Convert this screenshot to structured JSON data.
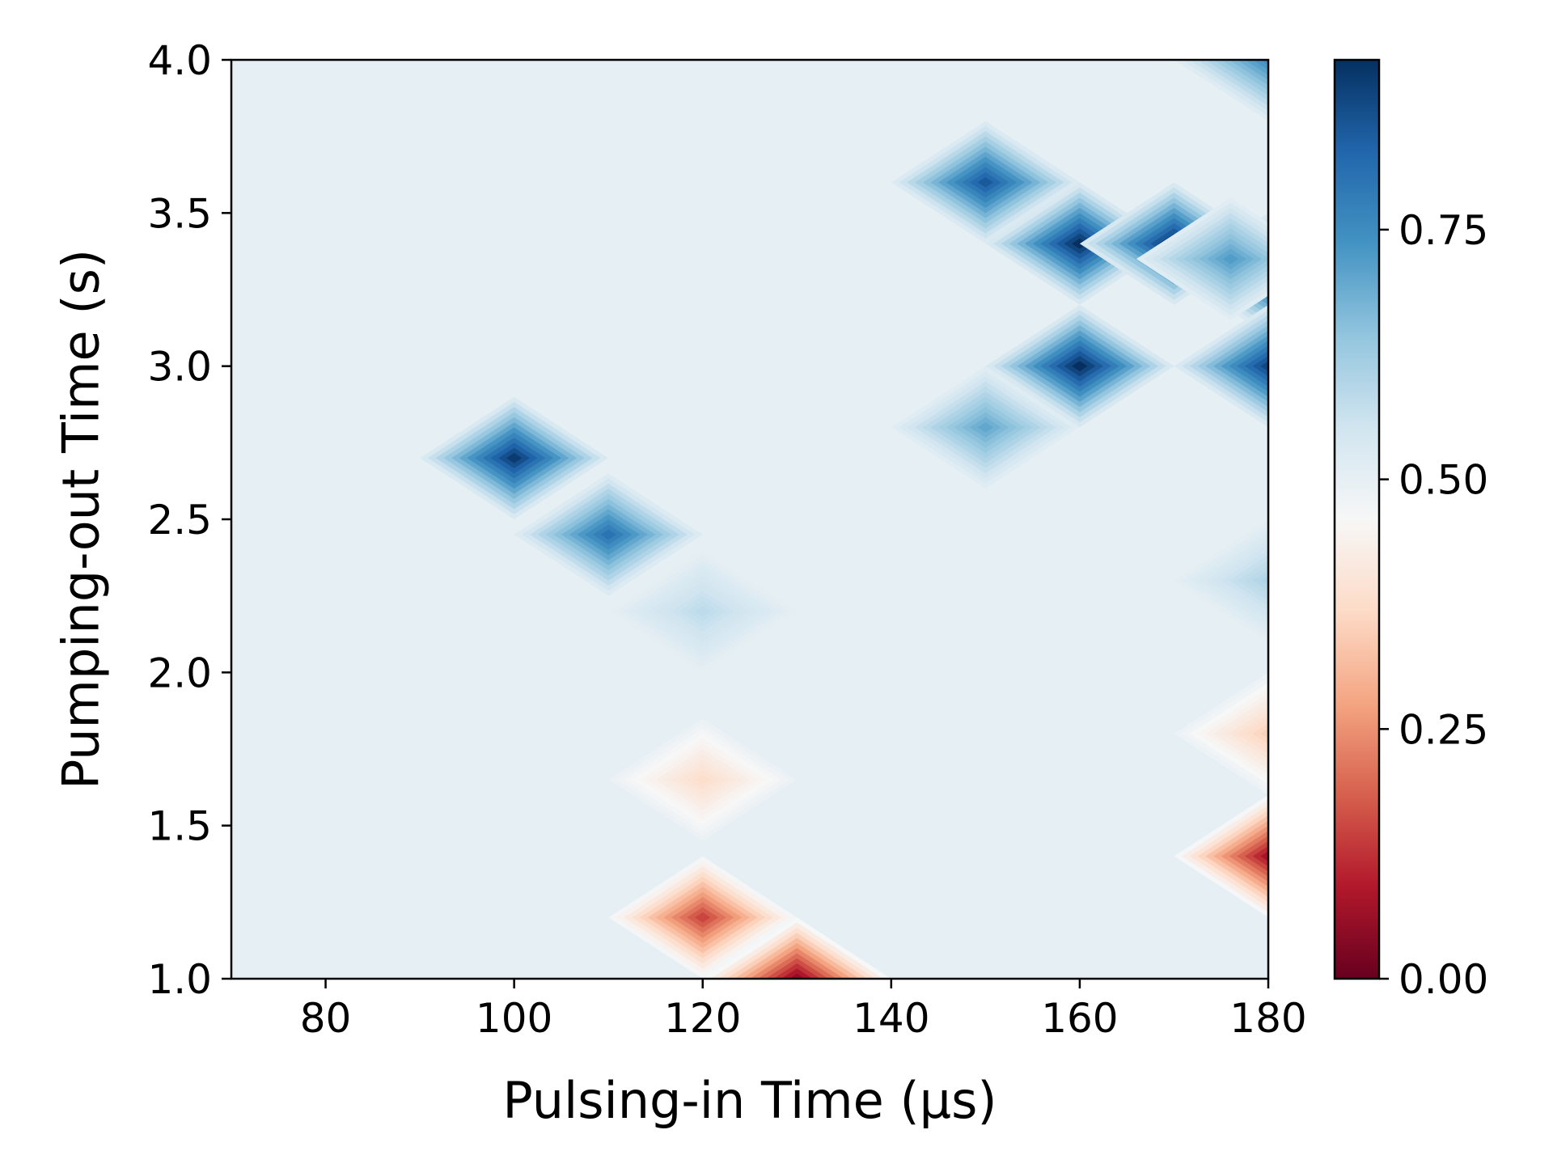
{
  "chart_data": {
    "type": "heatmap",
    "title": "",
    "xlabel": "Pulsing-in Time (µs)",
    "ylabel": "Pumping-out Time (s)",
    "xlim": [
      70,
      180
    ],
    "ylim": [
      1.0,
      4.0
    ],
    "x_ticks": [
      80,
      100,
      120,
      140,
      160,
      180
    ],
    "y_ticks": [
      1.0,
      1.5,
      2.0,
      2.5,
      3.0,
      3.5,
      4.0
    ],
    "x_tick_labels": [
      "80",
      "100",
      "120",
      "140",
      "160",
      "180"
    ],
    "y_tick_labels": [
      "1.0",
      "1.5",
      "2.0",
      "2.5",
      "3.0",
      "3.5",
      "4.0"
    ],
    "colormap": "RdBu",
    "background_value": 0.5,
    "colorbar": {
      "range": [
        0.0,
        0.92
      ],
      "ticks": [
        0.0,
        0.25,
        0.5,
        0.75
      ],
      "tick_labels": [
        "0.00",
        "0.25",
        "0.50",
        "0.75"
      ],
      "colors": [
        "#67001f",
        "#b2182b",
        "#d6604d",
        "#f4a582",
        "#fddbc7",
        "#f7f7f7",
        "#d1e5f0",
        "#92c5de",
        "#4393c3",
        "#2166ac",
        "#053061"
      ]
    },
    "features": [
      {
        "x": 100,
        "y": 2.7,
        "value": 0.9
      },
      {
        "x": 110,
        "y": 2.45,
        "value": 0.8
      },
      {
        "x": 120,
        "y": 2.2,
        "value": 0.58
      },
      {
        "x": 120,
        "y": 1.65,
        "value": 0.38
      },
      {
        "x": 120,
        "y": 1.2,
        "value": 0.15
      },
      {
        "x": 130,
        "y": 1.0,
        "value": 0.05
      },
      {
        "x": 150,
        "y": 3.6,
        "value": 0.85
      },
      {
        "x": 150,
        "y": 2.8,
        "value": 0.7
      },
      {
        "x": 160,
        "y": 3.4,
        "value": 0.92
      },
      {
        "x": 170,
        "y": 3.4,
        "value": 0.92
      },
      {
        "x": 180,
        "y": 3.3,
        "value": 0.85
      },
      {
        "x": 176,
        "y": 3.35,
        "value": 0.72
      },
      {
        "x": 160,
        "y": 3.0,
        "value": 0.92
      },
      {
        "x": 180,
        "y": 3.0,
        "value": 0.88
      },
      {
        "x": 180,
        "y": 4.0,
        "value": 0.75
      },
      {
        "x": 180,
        "y": 2.3,
        "value": 0.6
      },
      {
        "x": 180,
        "y": 1.8,
        "value": 0.35
      },
      {
        "x": 180,
        "y": 1.4,
        "value": 0.08
      }
    ]
  }
}
